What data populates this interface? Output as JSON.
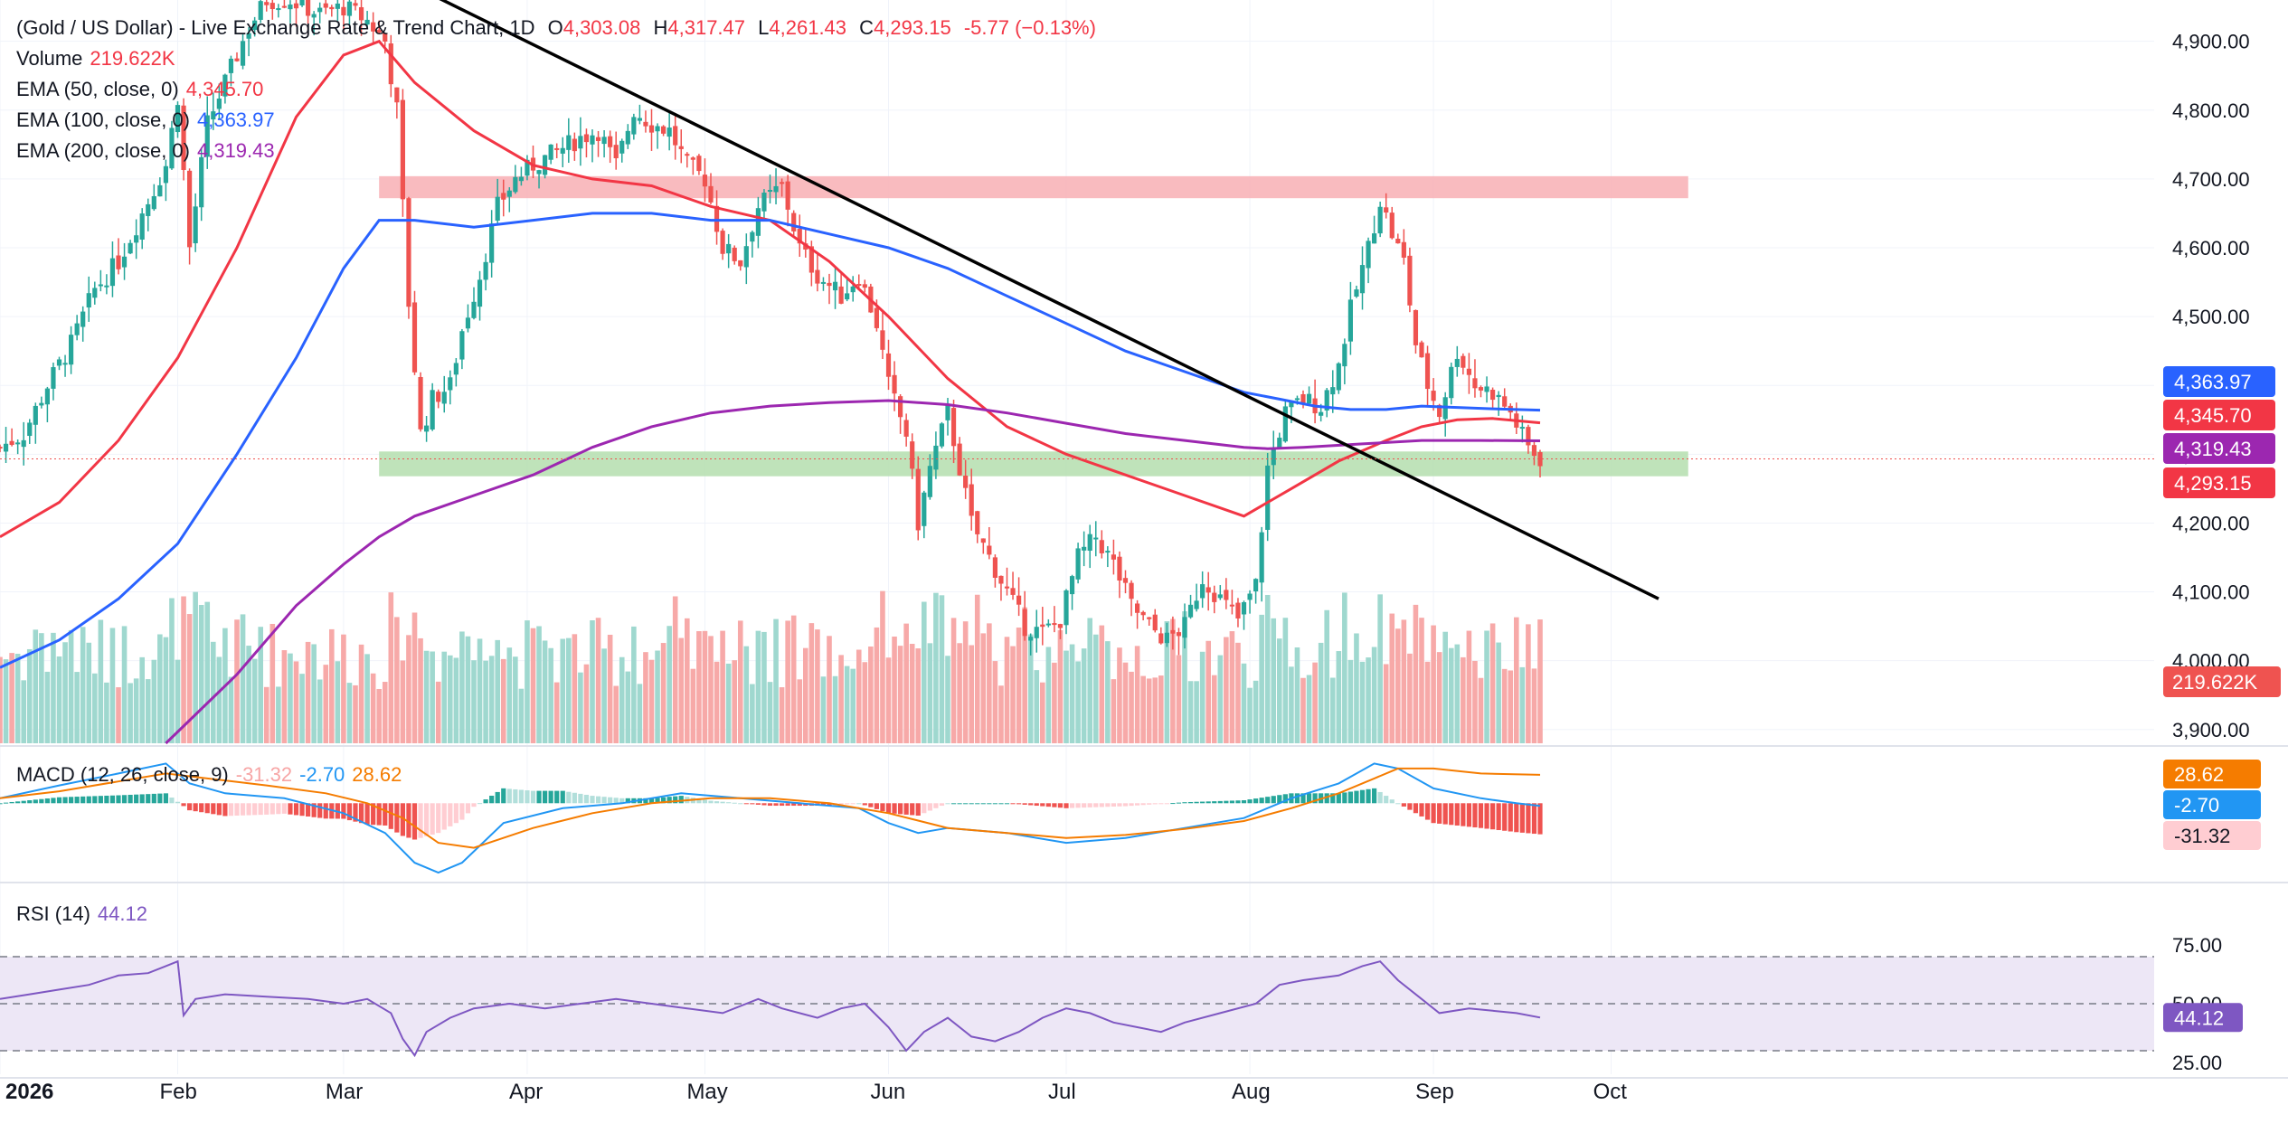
{
  "header": {
    "symbol": "(Gold / US Dollar) - Live Exchange Rate & Trend Chart, 1D",
    "open_label": "O",
    "open": "4,303.08",
    "high_label": "H",
    "high": "4,317.47",
    "low_label": "L",
    "low": "4,261.43",
    "close_label": "C",
    "close": "4,293.15",
    "change": "-5.77 (−0.13%)"
  },
  "indicators": {
    "volume": {
      "name": "Volume",
      "value": "219.622K"
    },
    "ema50": {
      "name": "EMA (50, close, 0)",
      "value": "4,345.70"
    },
    "ema100": {
      "name": "EMA (100, close, 0)",
      "value": "4,363.97"
    },
    "ema200": {
      "name": "EMA (200, close, 0)",
      "value": "4,319.43"
    },
    "macd": {
      "name": "MACD (12, 26, close, 9)",
      "hist": "-31.32",
      "macd": "-2.70",
      "signal": "28.62"
    },
    "rsi": {
      "name": "RSI (14)",
      "value": "44.12"
    }
  },
  "colors": {
    "up": "#26a69a",
    "down": "#ef5350",
    "vol_up": "#9fd8cf",
    "vol_down": "#f7a9a8",
    "ema50": "#f23645",
    "ema100": "#2962ff",
    "ema200": "#9c27b0",
    "macd_line": "#2196f3",
    "signal_line": "#f57c00",
    "rsi_line": "#7e57c2",
    "rsi_band": "#ede7f6",
    "resistance_zone": "#f8b4b8",
    "support_zone": "#b8e0b2",
    "trendline": "#000000",
    "grid": "#f0f3fa"
  },
  "chart_data": {
    "type": "candlestick",
    "title": "(Gold / US Dollar) - Live Exchange Rate & Trend Chart, 1D",
    "x_labels": [
      {
        "day": 0,
        "label": "2026"
      },
      {
        "day": 30,
        "label": "Feb"
      },
      {
        "day": 58,
        "label": "Mar"
      },
      {
        "day": 89,
        "label": "Apr"
      },
      {
        "day": 119,
        "label": "May"
      },
      {
        "day": 150,
        "label": "Jun"
      },
      {
        "day": 180,
        "label": "Jul"
      },
      {
        "day": 211,
        "label": "Aug"
      },
      {
        "day": 242,
        "label": "Sep"
      },
      {
        "day": 272,
        "label": "Oct"
      }
    ],
    "y_range": [
      3880,
      4960
    ],
    "y_ticks": [
      {
        "v": 3900,
        "label": "3,900.00"
      },
      {
        "v": 4000,
        "label": "4,000.00"
      },
      {
        "v": 4100,
        "label": "4,100.00"
      },
      {
        "v": 4200,
        "label": "4,200.00"
      },
      {
        "v": 4300,
        "label": "4,300.00"
      },
      {
        "v": 4400,
        "label": "4,400.00"
      },
      {
        "v": 4500,
        "label": "4,500.00"
      },
      {
        "v": 4600,
        "label": "4,600.00"
      },
      {
        "v": 4700,
        "label": "4,700.00"
      },
      {
        "v": 4800,
        "label": "4,800.00"
      },
      {
        "v": 4900,
        "label": "4,900.00"
      }
    ],
    "path_points": [
      [
        0,
        4310
      ],
      [
        4,
        4330
      ],
      [
        8,
        4400
      ],
      [
        12,
        4460
      ],
      [
        16,
        4540
      ],
      [
        20,
        4580
      ],
      [
        24,
        4650
      ],
      [
        28,
        4720
      ],
      [
        30,
        4820
      ],
      [
        32,
        4600
      ],
      [
        35,
        4780
      ],
      [
        40,
        4880
      ],
      [
        42,
        4920
      ],
      [
        45,
        4960
      ],
      [
        49,
        4960
      ],
      [
        54,
        4940
      ],
      [
        58,
        4950
      ],
      [
        62,
        4930
      ],
      [
        65,
        4900
      ],
      [
        67,
        4800
      ],
      [
        69,
        4520
      ],
      [
        71,
        4330
      ],
      [
        73,
        4380
      ],
      [
        76,
        4400
      ],
      [
        78,
        4480
      ],
      [
        81,
        4560
      ],
      [
        84,
        4660
      ],
      [
        87,
        4700
      ],
      [
        90,
        4720
      ],
      [
        94,
        4740
      ],
      [
        98,
        4760
      ],
      [
        101,
        4770
      ],
      [
        104,
        4720
      ],
      [
        107,
        4800
      ],
      [
        110,
        4780
      ],
      [
        113,
        4770
      ],
      [
        116,
        4720
      ],
      [
        119,
        4700
      ],
      [
        122,
        4600
      ],
      [
        125,
        4580
      ],
      [
        128,
        4660
      ],
      [
        132,
        4690
      ],
      [
        135,
        4600
      ],
      [
        138,
        4560
      ],
      [
        142,
        4530
      ],
      [
        145,
        4560
      ],
      [
        148,
        4490
      ],
      [
        150,
        4400
      ],
      [
        153,
        4330
      ],
      [
        155,
        4200
      ],
      [
        157,
        4280
      ],
      [
        160,
        4360
      ],
      [
        162,
        4280
      ],
      [
        164,
        4200
      ],
      [
        167,
        4150
      ],
      [
        170,
        4100
      ],
      [
        173,
        4050
      ],
      [
        176,
        4040
      ],
      [
        179,
        4060
      ],
      [
        182,
        4150
      ],
      [
        185,
        4180
      ],
      [
        188,
        4140
      ],
      [
        191,
        4080
      ],
      [
        194,
        4050
      ],
      [
        197,
        4030
      ],
      [
        200,
        4050
      ],
      [
        203,
        4120
      ],
      [
        206,
        4090
      ],
      [
        209,
        4060
      ],
      [
        212,
        4110
      ],
      [
        214,
        4280
      ],
      [
        217,
        4360
      ],
      [
        220,
        4380
      ],
      [
        223,
        4370
      ],
      [
        226,
        4430
      ],
      [
        228,
        4510
      ],
      [
        231,
        4600
      ],
      [
        233,
        4670
      ],
      [
        235,
        4620
      ],
      [
        237,
        4580
      ],
      [
        239,
        4460
      ],
      [
        241,
        4400
      ],
      [
        243,
        4360
      ],
      [
        246,
        4450
      ],
      [
        249,
        4400
      ],
      [
        252,
        4390
      ],
      [
        255,
        4360
      ],
      [
        258,
        4310
      ],
      [
        260,
        4293.15
      ]
    ],
    "last_day": 260,
    "series": [
      {
        "name": "EMA (50, close, 0)",
        "last": 4345.7,
        "points": [
          [
            0,
            4180
          ],
          [
            10,
            4230
          ],
          [
            20,
            4320
          ],
          [
            30,
            4440
          ],
          [
            40,
            4600
          ],
          [
            50,
            4790
          ],
          [
            58,
            4880
          ],
          [
            64,
            4900
          ],
          [
            70,
            4840
          ],
          [
            80,
            4770
          ],
          [
            90,
            4720
          ],
          [
            100,
            4700
          ],
          [
            110,
            4690
          ],
          [
            120,
            4660
          ],
          [
            130,
            4640
          ],
          [
            140,
            4580
          ],
          [
            150,
            4500
          ],
          [
            160,
            4410
          ],
          [
            170,
            4340
          ],
          [
            180,
            4300
          ],
          [
            190,
            4270
          ],
          [
            200,
            4240
          ],
          [
            210,
            4210
          ],
          [
            218,
            4250
          ],
          [
            226,
            4290
          ],
          [
            234,
            4320
          ],
          [
            240,
            4340
          ],
          [
            246,
            4350
          ],
          [
            252,
            4352
          ],
          [
            260,
            4345.7
          ]
        ]
      },
      {
        "name": "EMA (100, close, 0)",
        "last": 4363.97,
        "points": [
          [
            0,
            3990
          ],
          [
            10,
            4030
          ],
          [
            20,
            4090
          ],
          [
            30,
            4170
          ],
          [
            40,
            4300
          ],
          [
            50,
            4440
          ],
          [
            58,
            4570
          ],
          [
            64,
            4640
          ],
          [
            70,
            4640
          ],
          [
            80,
            4630
          ],
          [
            90,
            4640
          ],
          [
            100,
            4650
          ],
          [
            110,
            4650
          ],
          [
            120,
            4640
          ],
          [
            130,
            4640
          ],
          [
            140,
            4620
          ],
          [
            150,
            4600
          ],
          [
            160,
            4570
          ],
          [
            170,
            4530
          ],
          [
            180,
            4490
          ],
          [
            190,
            4450
          ],
          [
            200,
            4420
          ],
          [
            210,
            4390
          ],
          [
            216,
            4380
          ],
          [
            222,
            4370
          ],
          [
            228,
            4365
          ],
          [
            234,
            4365
          ],
          [
            240,
            4370
          ],
          [
            246,
            4368
          ],
          [
            252,
            4366
          ],
          [
            260,
            4363.97
          ]
        ]
      },
      {
        "name": "EMA (200, close, 0)",
        "last": 4319.43,
        "points": [
          [
            28,
            3880
          ],
          [
            40,
            3980
          ],
          [
            50,
            4080
          ],
          [
            58,
            4140
          ],
          [
            64,
            4180
          ],
          [
            70,
            4210
          ],
          [
            80,
            4240
          ],
          [
            90,
            4270
          ],
          [
            100,
            4310
          ],
          [
            110,
            4340
          ],
          [
            120,
            4360
          ],
          [
            130,
            4370
          ],
          [
            140,
            4375
          ],
          [
            150,
            4378
          ],
          [
            160,
            4372
          ],
          [
            170,
            4360
          ],
          [
            180,
            4345
          ],
          [
            190,
            4330
          ],
          [
            200,
            4320
          ],
          [
            210,
            4310
          ],
          [
            214,
            4308
          ],
          [
            220,
            4310
          ],
          [
            230,
            4315
          ],
          [
            240,
            4320
          ],
          [
            250,
            4320
          ],
          [
            260,
            4319.43
          ]
        ]
      }
    ],
    "trendline": [
      [
        70,
        4980
      ],
      [
        280,
        4090
      ]
    ],
    "zones": [
      {
        "name": "resistance",
        "from_day": 64,
        "to_day": 285,
        "low": 4672,
        "high": 4704
      },
      {
        "name": "support",
        "from_day": 64,
        "to_day": 285,
        "low": 4268,
        "high": 4304
      }
    ],
    "price_labels": [
      {
        "value": "4,363.97",
        "v": 4363.97,
        "color": "#2962ff"
      },
      {
        "value": "4,345.70",
        "v": 4345.7,
        "color": "#f23645"
      },
      {
        "value": "4,319.43",
        "v": 4319.43,
        "color": "#9c27b0"
      },
      {
        "value": "4,293.15",
        "v": 4293.15,
        "color": "#f23645"
      }
    ],
    "volume_label": "219.622K",
    "macd": {
      "hist_label": "-31.32",
      "macd_label": "-2.70",
      "signal_label": "28.62",
      "macd_points": [
        [
          0,
          5
        ],
        [
          10,
          18
        ],
        [
          20,
          30
        ],
        [
          28,
          40
        ],
        [
          32,
          20
        ],
        [
          38,
          10
        ],
        [
          48,
          5
        ],
        [
          58,
          -10
        ],
        [
          65,
          -30
        ],
        [
          70,
          -60
        ],
        [
          74,
          -70
        ],
        [
          78,
          -60
        ],
        [
          85,
          -20
        ],
        [
          95,
          -5
        ],
        [
          105,
          0
        ],
        [
          115,
          10
        ],
        [
          125,
          5
        ],
        [
          135,
          0
        ],
        [
          145,
          -5
        ],
        [
          150,
          -20
        ],
        [
          155,
          -30
        ],
        [
          160,
          -25
        ],
        [
          170,
          -30
        ],
        [
          180,
          -40
        ],
        [
          190,
          -35
        ],
        [
          200,
          -25
        ],
        [
          210,
          -15
        ],
        [
          218,
          5
        ],
        [
          226,
          20
        ],
        [
          232,
          40
        ],
        [
          236,
          35
        ],
        [
          242,
          15
        ],
        [
          250,
          5
        ],
        [
          256,
          0
        ],
        [
          260,
          -2.7
        ]
      ],
      "signal_points": [
        [
          0,
          5
        ],
        [
          10,
          12
        ],
        [
          20,
          22
        ],
        [
          28,
          30
        ],
        [
          35,
          25
        ],
        [
          45,
          18
        ],
        [
          55,
          10
        ],
        [
          62,
          0
        ],
        [
          68,
          -15
        ],
        [
          74,
          -40
        ],
        [
          80,
          -45
        ],
        [
          90,
          -25
        ],
        [
          100,
          -10
        ],
        [
          110,
          0
        ],
        [
          120,
          5
        ],
        [
          130,
          5
        ],
        [
          140,
          0
        ],
        [
          150,
          -10
        ],
        [
          160,
          -25
        ],
        [
          170,
          -30
        ],
        [
          180,
          -35
        ],
        [
          190,
          -32
        ],
        [
          200,
          -26
        ],
        [
          210,
          -18
        ],
        [
          218,
          -5
        ],
        [
          226,
          10
        ],
        [
          232,
          25
        ],
        [
          236,
          35
        ],
        [
          242,
          35
        ],
        [
          250,
          30
        ],
        [
          260,
          28.62
        ]
      ],
      "range": [
        -80,
        55
      ]
    },
    "rsi": {
      "label": "44.12",
      "ticks": [
        {
          "v": 25,
          "label": "25.00"
        },
        {
          "v": 50,
          "label": "50.00"
        },
        {
          "v": 75,
          "label": "75.00"
        }
      ],
      "band": [
        30,
        70
      ],
      "range": [
        20,
        100
      ],
      "points": [
        [
          0,
          52
        ],
        [
          5,
          54
        ],
        [
          10,
          56
        ],
        [
          15,
          58
        ],
        [
          20,
          62
        ],
        [
          25,
          63
        ],
        [
          28,
          66
        ],
        [
          30,
          68
        ],
        [
          31,
          45
        ],
        [
          33,
          52
        ],
        [
          38,
          54
        ],
        [
          45,
          53
        ],
        [
          52,
          52
        ],
        [
          58,
          50
        ],
        [
          62,
          52
        ],
        [
          66,
          46
        ],
        [
          68,
          35
        ],
        [
          70,
          28
        ],
        [
          72,
          38
        ],
        [
          76,
          44
        ],
        [
          80,
          48
        ],
        [
          86,
          50
        ],
        [
          92,
          48
        ],
        [
          98,
          50
        ],
        [
          104,
          52
        ],
        [
          110,
          50
        ],
        [
          116,
          48
        ],
        [
          122,
          46
        ],
        [
          128,
          52
        ],
        [
          132,
          48
        ],
        [
          138,
          44
        ],
        [
          142,
          48
        ],
        [
          146,
          50
        ],
        [
          150,
          40
        ],
        [
          153,
          30
        ],
        [
          156,
          38
        ],
        [
          160,
          44
        ],
        [
          164,
          36
        ],
        [
          168,
          34
        ],
        [
          172,
          38
        ],
        [
          176,
          44
        ],
        [
          180,
          48
        ],
        [
          184,
          46
        ],
        [
          188,
          42
        ],
        [
          192,
          40
        ],
        [
          196,
          38
        ],
        [
          200,
          42
        ],
        [
          206,
          46
        ],
        [
          212,
          50
        ],
        [
          216,
          58
        ],
        [
          220,
          60
        ],
        [
          226,
          62
        ],
        [
          230,
          66
        ],
        [
          233,
          68
        ],
        [
          236,
          60
        ],
        [
          240,
          52
        ],
        [
          243,
          46
        ],
        [
          248,
          48
        ],
        [
          252,
          47
        ],
        [
          256,
          46
        ],
        [
          260,
          44.12
        ]
      ]
    }
  }
}
